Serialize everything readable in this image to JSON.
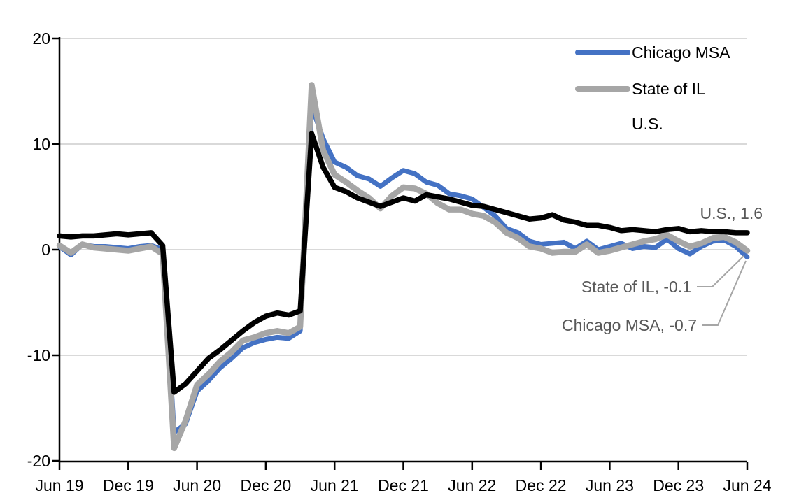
{
  "chart_data": {
    "type": "line",
    "title": "",
    "xlabel": "",
    "ylabel": "",
    "ylim": [
      -20,
      20
    ],
    "y_ticks": [
      20,
      10,
      0,
      -10,
      -20
    ],
    "x_tick_labels": [
      "Jun 19",
      "Dec 19",
      "Jun 20",
      "Dec 20",
      "Jun 21",
      "Dec 21",
      "Jun 22",
      "Dec 22",
      "Jun 23",
      "Dec 23",
      "Jun 24"
    ],
    "x_frequency": "monthly",
    "grid": true,
    "legend_position": "top-right-inside",
    "x_months": [
      "2019-06",
      "2019-07",
      "2019-08",
      "2019-09",
      "2019-10",
      "2019-11",
      "2019-12",
      "2020-01",
      "2020-02",
      "2020-03",
      "2020-04",
      "2020-05",
      "2020-06",
      "2020-07",
      "2020-08",
      "2020-09",
      "2020-10",
      "2020-11",
      "2020-12",
      "2021-01",
      "2021-02",
      "2021-03",
      "2021-04",
      "2021-05",
      "2021-06",
      "2021-07",
      "2021-08",
      "2021-09",
      "2021-10",
      "2021-11",
      "2021-12",
      "2022-01",
      "2022-02",
      "2022-03",
      "2022-04",
      "2022-05",
      "2022-06",
      "2022-07",
      "2022-08",
      "2022-09",
      "2022-10",
      "2022-11",
      "2022-12",
      "2023-01",
      "2023-02",
      "2023-03",
      "2023-04",
      "2023-05",
      "2023-06",
      "2023-07",
      "2023-08",
      "2023-09",
      "2023-10",
      "2023-11",
      "2023-12",
      "2024-01",
      "2024-02",
      "2024-03",
      "2024-04",
      "2024-05",
      "2024-06"
    ],
    "series": [
      {
        "name": "Chicago MSA",
        "color": "#4472C4",
        "values": [
          0.3,
          -0.5,
          0.5,
          0.3,
          0.3,
          0.2,
          0.1,
          0.3,
          0.4,
          0.0,
          -17.3,
          -16.5,
          -13.4,
          -12.4,
          -11.2,
          -10.3,
          -9.3,
          -8.8,
          -8.5,
          -8.3,
          -8.4,
          -7.7,
          13.6,
          10.5,
          8.3,
          7.8,
          7.0,
          6.7,
          6.0,
          6.8,
          7.5,
          7.2,
          6.4,
          6.1,
          5.3,
          5.1,
          4.8,
          4.0,
          3.2,
          2.0,
          1.6,
          0.8,
          0.5,
          0.6,
          0.7,
          0.1,
          0.8,
          0.0,
          0.3,
          0.6,
          0.1,
          0.3,
          0.2,
          1.0,
          0.1,
          -0.4,
          0.3,
          0.8,
          0.9,
          0.3,
          -0.7
        ]
      },
      {
        "name": "State of IL",
        "color": "#A6A6A6",
        "values": [
          0.4,
          -0.3,
          0.5,
          0.2,
          0.1,
          0.0,
          -0.1,
          0.1,
          0.3,
          -0.4,
          -18.8,
          -16.2,
          -12.8,
          -11.8,
          -10.6,
          -9.7,
          -8.6,
          -8.3,
          -7.9,
          -7.7,
          -7.9,
          -7.3,
          15.6,
          9.4,
          7.1,
          6.4,
          5.6,
          4.9,
          3.9,
          5.1,
          5.9,
          5.8,
          5.3,
          4.4,
          3.8,
          3.8,
          3.4,
          3.2,
          2.6,
          1.6,
          1.1,
          0.3,
          0.1,
          -0.3,
          -0.2,
          -0.2,
          0.5,
          -0.3,
          -0.1,
          0.2,
          0.5,
          0.8,
          1.0,
          1.4,
          0.8,
          0.3,
          0.6,
          1.1,
          1.2,
          0.7,
          -0.1
        ]
      },
      {
        "name": "U.S.",
        "color": "#000000",
        "values": [
          1.3,
          1.2,
          1.3,
          1.3,
          1.4,
          1.5,
          1.4,
          1.5,
          1.6,
          0.4,
          -13.5,
          -12.7,
          -11.5,
          -10.3,
          -9.5,
          -8.6,
          -7.7,
          -6.9,
          -6.3,
          -6.0,
          -6.2,
          -5.8,
          11.0,
          7.8,
          5.9,
          5.5,
          4.9,
          4.5,
          4.1,
          4.5,
          4.9,
          4.6,
          5.2,
          5.0,
          4.8,
          4.5,
          4.2,
          4.1,
          3.8,
          3.5,
          3.2,
          2.9,
          3.0,
          3.3,
          2.8,
          2.6,
          2.3,
          2.3,
          2.1,
          1.8,
          1.9,
          1.8,
          1.7,
          1.9,
          2.0,
          1.7,
          1.8,
          1.7,
          1.7,
          1.6,
          1.6
        ]
      }
    ],
    "annotations": [
      {
        "series": "U.S.",
        "value": 1.6,
        "text": "U.S., 1.6"
      },
      {
        "series": "State of IL",
        "value": -0.1,
        "text": "State of IL, -0.1"
      },
      {
        "series": "Chicago MSA",
        "value": -0.7,
        "text": "Chicago MSA, -0.7"
      }
    ],
    "style": {
      "blue": "#4472C4",
      "gray": "#A6A6A6",
      "black": "#000000",
      "gridline_color": "#D9D9D9",
      "axis_color": "#000000",
      "annotation_text_color": "#595959",
      "leader_line_color": "#A6A6A6"
    }
  }
}
